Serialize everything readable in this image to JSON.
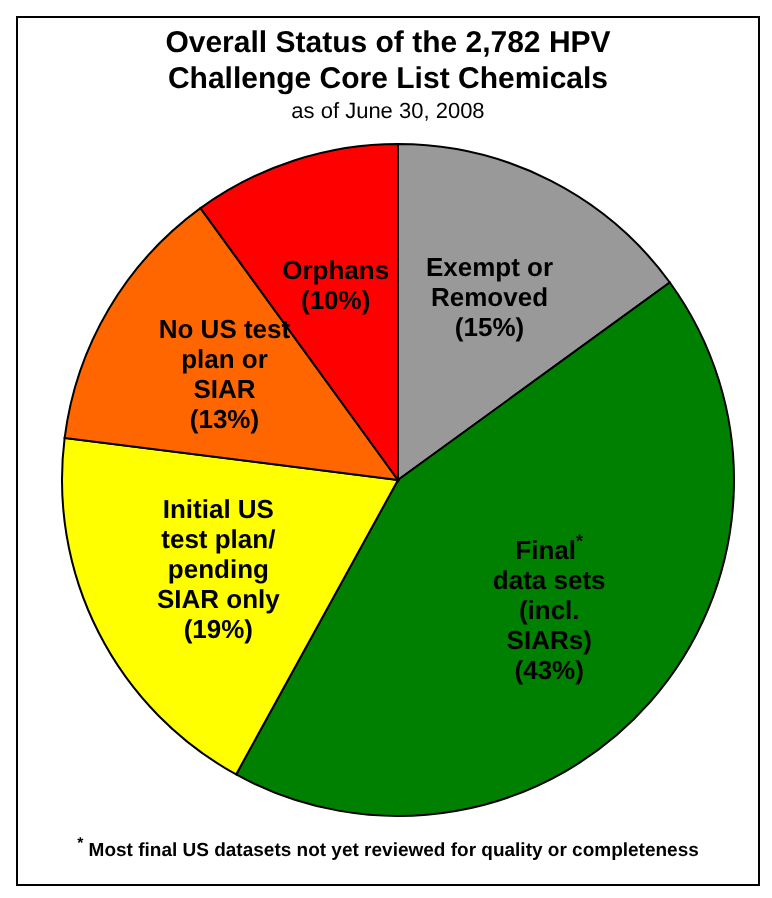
{
  "chart_data": {
    "type": "pie",
    "title": "Overall Status of the 2,782 HPV Challenge Core List Chemicals",
    "subtitle": "as of June 30, 2008",
    "categories": [
      "Exempt or Removed",
      "Final$^{*}$ data sets (incl. SIARs)",
      "Initial US test plan/ pending SIAR only",
      "No US test plan or SIAR",
      "Orphans"
    ],
    "values": [
      15,
      43,
      19,
      13,
      10
    ],
    "value_labels": [
      "(15%)",
      "(43%)",
      "(19%)",
      "(13%)",
      "(10%)"
    ],
    "colors": [
      "#999999",
      "#008000",
      "#ffff00",
      "#ff6600",
      "#ff0000"
    ],
    "annotations": [
      "$^{*}$ Most final US datasets not yet reviewed for quality or completeness"
    ]
  }
}
